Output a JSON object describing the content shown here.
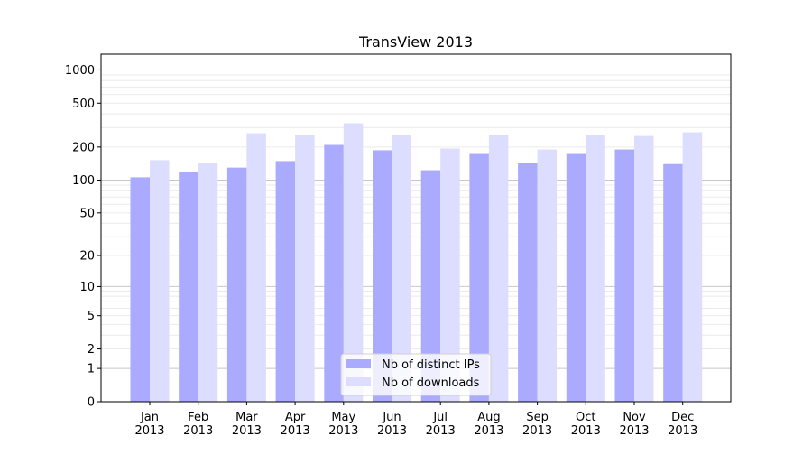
{
  "chart_data": {
    "type": "bar",
    "title": "TransView 2013",
    "xlabel": "",
    "ylabel": "",
    "yscale": "symlog (log10(1+y))",
    "ylim": [
      0,
      1300
    ],
    "yticks": [
      0,
      1,
      2,
      5,
      10,
      20,
      50,
      100,
      200,
      500,
      1000
    ],
    "grid": true,
    "legend_placement": "lower center",
    "categories": [
      "Jan\n2013",
      "Feb\n2013",
      "Mar\n2013",
      "Apr\n2013",
      "May\n2013",
      "Jun\n2013",
      "Jul\n2013",
      "Aug\n2013",
      "Sep\n2013",
      "Oct\n2013",
      "Nov\n2013",
      "Dec\n2013"
    ],
    "series": [
      {
        "name": "Nb of distinct IPs",
        "color": "#aaaaff",
        "values": [
          106,
          118,
          130,
          149,
          209,
          187,
          123,
          173,
          143,
          173,
          190,
          140
        ]
      },
      {
        "name": "Nb of downloads",
        "color": "#ddddff",
        "values": [
          152,
          143,
          267,
          257,
          329,
          257,
          194,
          257,
          190,
          257,
          252,
          272
        ]
      }
    ]
  }
}
